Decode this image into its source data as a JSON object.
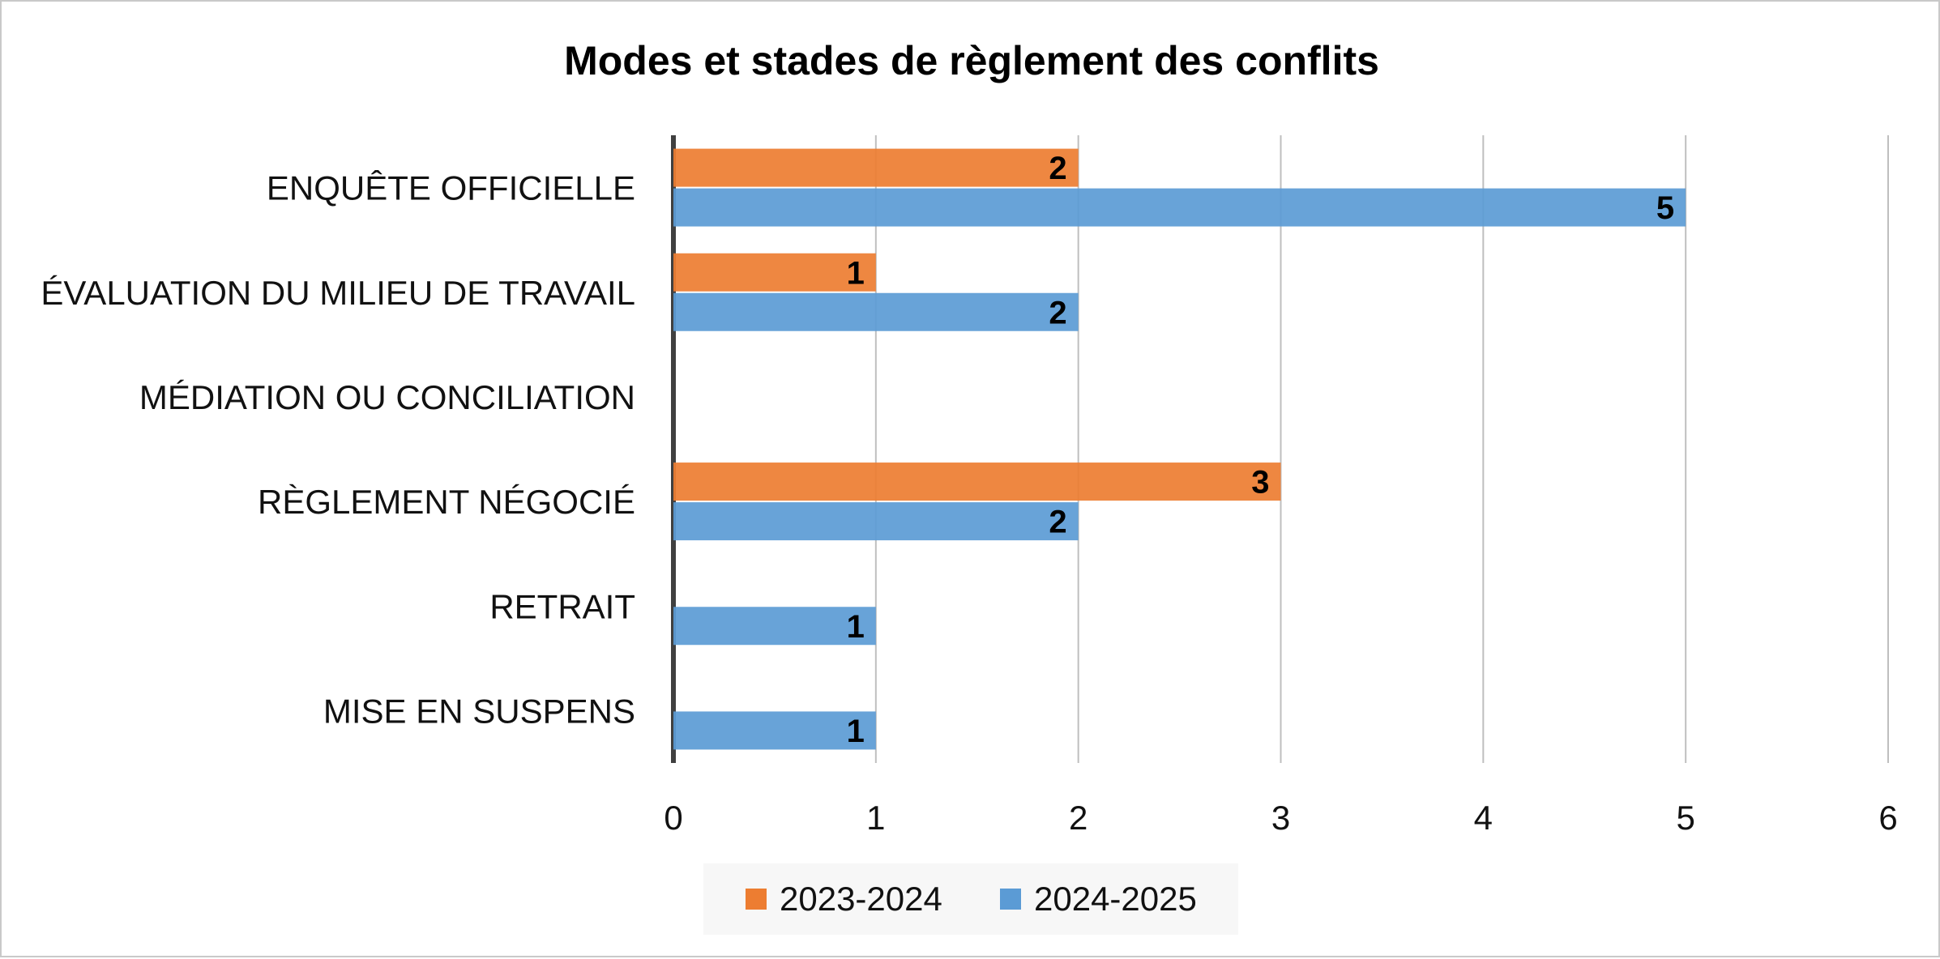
{
  "chart_data": {
    "type": "bar",
    "orientation": "horizontal",
    "title": "Modes et stades de règlement des conflits",
    "categories": [
      "ENQUÊTE OFFICIELLE",
      "ÉVALUATION DU MILIEU DE TRAVAIL",
      "MÉDIATION OU CONCILIATION",
      "RÈGLEMENT NÉGOCIÉ",
      "RETRAIT",
      "MISE EN SUSPENS"
    ],
    "series": [
      {
        "name": "2023-2024",
        "color": "#ED7D31",
        "values": [
          2,
          1,
          null,
          3,
          null,
          null
        ]
      },
      {
        "name": "2024-2025",
        "color": "#5B9BD5",
        "values": [
          5,
          2,
          null,
          2,
          1,
          1
        ]
      }
    ],
    "xlim": [
      0,
      6
    ],
    "xticks": [
      "0",
      "1",
      "2",
      "3",
      "4",
      "5",
      "6"
    ],
    "xlabel": "",
    "ylabel": "",
    "grid": true,
    "legend_position": "bottom",
    "data_labels": true
  }
}
